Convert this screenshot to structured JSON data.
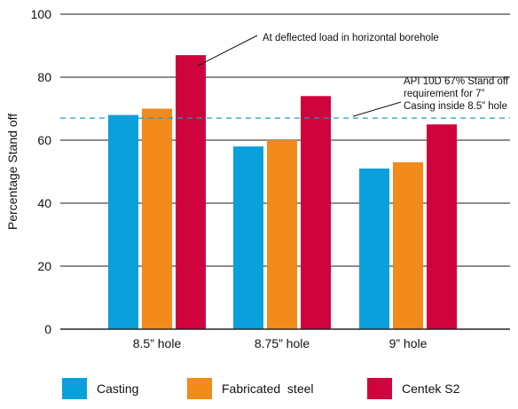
{
  "chart_data": {
    "type": "bar",
    "ylabel": "Percentage Stand off",
    "xlabel": "",
    "ylim": [
      0,
      100
    ],
    "yticks": [
      0,
      20,
      40,
      60,
      80,
      100
    ],
    "grid": true,
    "legend_position": "bottom",
    "categories": [
      "8.5” hole",
      "8.75” hole",
      "9” hole"
    ],
    "series": [
      {
        "name": "Casting",
        "color": "#0aa0dc",
        "values": [
          68,
          58,
          51
        ]
      },
      {
        "name": "Fabricated  steel",
        "color": "#f28a1c",
        "values": [
          70,
          60,
          53
        ]
      },
      {
        "name": "Centek S2",
        "color": "#d0043c",
        "values": [
          87,
          74,
          65
        ]
      }
    ],
    "reference_line": {
      "value": 67,
      "color": "#1e9ad6",
      "label": [
        "API 10D 67% Stand off",
        "requirement for 7”",
        "Casing inside 8.5” hole"
      ]
    },
    "annotation": {
      "text": "At deflected load in horizontal borehole",
      "series_index": 2,
      "category_index": 0
    }
  }
}
